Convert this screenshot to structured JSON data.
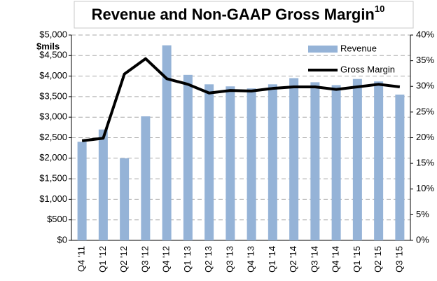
{
  "chart_data": {
    "type": "bar_line",
    "title": "Revenue and Non-GAAP Gross Margin",
    "title_superscript": "10",
    "y_label": "$mils",
    "categories": [
      "Q4 '11",
      "Q1 '12",
      "Q2 '12",
      "Q3 '12",
      "Q4 '12",
      "Q1 '13",
      "Q2 '13",
      "Q3 '13",
      "Q4 '13",
      "Q1 '14",
      "Q2 '14",
      "Q3 '14",
      "Q4 '14",
      "Q1 '15",
      "Q2 '15",
      "Q3 '15"
    ],
    "series": [
      {
        "name": "Revenue",
        "type": "bar",
        "color": "#95b3d7",
        "values": [
          2400,
          2700,
          2000,
          3020,
          4750,
          4030,
          3800,
          3750,
          3700,
          3800,
          3950,
          3850,
          3780,
          3930,
          3870,
          3550
        ]
      },
      {
        "name": "Gross Margin",
        "type": "line",
        "axis": "y2",
        "color": "#000000",
        "values": [
          19.4,
          19.9,
          32.4,
          35.4,
          31.5,
          30.4,
          28.7,
          29.2,
          29.1,
          29.6,
          29.9,
          29.9,
          29.4,
          29.9,
          30.4,
          29.9
        ]
      }
    ],
    "ylim": [
      0,
      5000
    ],
    "yticks": [
      {
        "value": 0,
        "label": "$0"
      },
      {
        "value": 500,
        "label": "$500"
      },
      {
        "value": 1000,
        "label": "$1,000"
      },
      {
        "value": 1500,
        "label": "$1,500"
      },
      {
        "value": 2000,
        "label": "$2,000"
      },
      {
        "value": 2500,
        "label": "$2,500"
      },
      {
        "value": 3000,
        "label": "$3,000"
      },
      {
        "value": 3500,
        "label": "$3,500"
      },
      {
        "value": 4000,
        "label": "$4,000"
      },
      {
        "value": 4500,
        "label": "$4,500"
      },
      {
        "value": 5000,
        "label": "$5,000"
      }
    ],
    "y2lim": [
      0,
      40
    ],
    "y2ticks": [
      {
        "value": 0,
        "label": "0%"
      },
      {
        "value": 5,
        "label": "5%"
      },
      {
        "value": 10,
        "label": "10%"
      },
      {
        "value": 15,
        "label": "15%"
      },
      {
        "value": 20,
        "label": "20%"
      },
      {
        "value": 25,
        "label": "25%"
      },
      {
        "value": 30,
        "label": "30%"
      },
      {
        "value": 35,
        "label": "35%"
      },
      {
        "value": 40,
        "label": "40%"
      }
    ],
    "grid": true,
    "legend": "top-right"
  }
}
